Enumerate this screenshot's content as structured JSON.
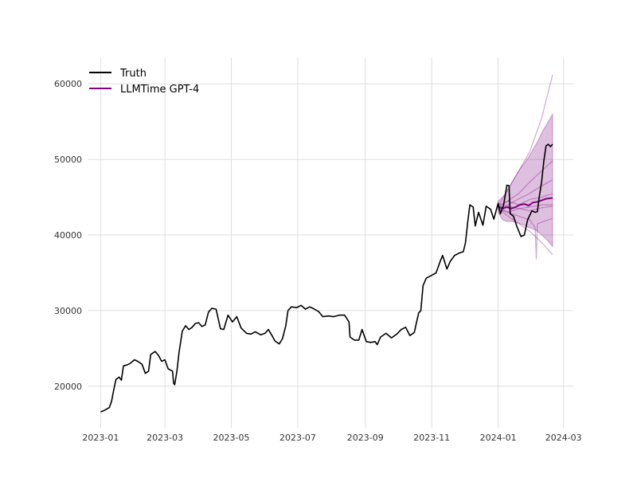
{
  "chart_data": {
    "type": "line",
    "title": "",
    "xlabel": "",
    "ylabel": "",
    "x_range": [
      "2022-12-20",
      "2024-03-10"
    ],
    "ylim": [
      14500,
      63500
    ],
    "grid": true,
    "legend_position": "top-left",
    "x_ticks": [
      "2023-01",
      "2023-03",
      "2023-05",
      "2023-07",
      "2023-09",
      "2023-11",
      "2024-01",
      "2024-03"
    ],
    "y_ticks": [
      20000,
      30000,
      40000,
      50000,
      60000
    ],
    "legend": [
      {
        "label": "Truth",
        "color": "#000000"
      },
      {
        "label": "LLMTime GPT-4",
        "color": "#800080"
      }
    ],
    "series": [
      {
        "name": "Truth",
        "color": "#000000",
        "points": [
          [
            "2023-01-01",
            16600
          ],
          [
            "2023-01-05",
            16850
          ],
          [
            "2023-01-09",
            17200
          ],
          [
            "2023-01-11",
            18000
          ],
          [
            "2023-01-13",
            19500
          ],
          [
            "2023-01-15",
            20900
          ],
          [
            "2023-01-18",
            21200
          ],
          [
            "2023-01-20",
            20800
          ],
          [
            "2023-01-22",
            22700
          ],
          [
            "2023-01-25",
            22800
          ],
          [
            "2023-01-28",
            23000
          ],
          [
            "2023-02-01",
            23500
          ],
          [
            "2023-02-04",
            23300
          ],
          [
            "2023-02-08",
            22900
          ],
          [
            "2023-02-11",
            21700
          ],
          [
            "2023-02-14",
            22000
          ],
          [
            "2023-02-16",
            24200
          ],
          [
            "2023-02-20",
            24600
          ],
          [
            "2023-02-23",
            24100
          ],
          [
            "2023-02-26",
            23300
          ],
          [
            "2023-03-01",
            23500
          ],
          [
            "2023-03-04",
            22300
          ],
          [
            "2023-03-08",
            22000
          ],
          [
            "2023-03-09",
            20400
          ],
          [
            "2023-03-10",
            20200
          ],
          [
            "2023-03-12",
            22000
          ],
          [
            "2023-03-14",
            24500
          ],
          [
            "2023-03-17",
            27300
          ],
          [
            "2023-03-20",
            28000
          ],
          [
            "2023-03-23",
            27500
          ],
          [
            "2023-03-26",
            27800
          ],
          [
            "2023-03-29",
            28300
          ],
          [
            "2023-04-01",
            28400
          ],
          [
            "2023-04-04",
            27900
          ],
          [
            "2023-04-07",
            28100
          ],
          [
            "2023-04-10",
            29800
          ],
          [
            "2023-04-13",
            30300
          ],
          [
            "2023-04-17",
            30200
          ],
          [
            "2023-04-19",
            28900
          ],
          [
            "2023-04-21",
            27600
          ],
          [
            "2023-04-24",
            27500
          ],
          [
            "2023-04-28",
            29400
          ],
          [
            "2023-05-02",
            28500
          ],
          [
            "2023-05-06",
            29200
          ],
          [
            "2023-05-10",
            27700
          ],
          [
            "2023-05-15",
            27000
          ],
          [
            "2023-05-19",
            26900
          ],
          [
            "2023-05-23",
            27200
          ],
          [
            "2023-05-28",
            26800
          ],
          [
            "2023-06-01",
            27000
          ],
          [
            "2023-06-04",
            27500
          ],
          [
            "2023-06-07",
            26800
          ],
          [
            "2023-06-10",
            26000
          ],
          [
            "2023-06-14",
            25600
          ],
          [
            "2023-06-17",
            26300
          ],
          [
            "2023-06-20",
            28000
          ],
          [
            "2023-06-22",
            30000
          ],
          [
            "2023-06-25",
            30500
          ],
          [
            "2023-06-30",
            30400
          ],
          [
            "2023-07-04",
            30700
          ],
          [
            "2023-07-08",
            30200
          ],
          [
            "2023-07-12",
            30500
          ],
          [
            "2023-07-15",
            30300
          ],
          [
            "2023-07-20",
            29900
          ],
          [
            "2023-07-24",
            29200
          ],
          [
            "2023-07-29",
            29300
          ],
          [
            "2023-08-03",
            29200
          ],
          [
            "2023-08-08",
            29400
          ],
          [
            "2023-08-13",
            29400
          ],
          [
            "2023-08-17",
            28500
          ],
          [
            "2023-08-18",
            26500
          ],
          [
            "2023-08-22",
            26100
          ],
          [
            "2023-08-26",
            26100
          ],
          [
            "2023-08-29",
            27500
          ],
          [
            "2023-09-02",
            25900
          ],
          [
            "2023-09-06",
            25800
          ],
          [
            "2023-09-10",
            25900
          ],
          [
            "2023-09-12",
            25500
          ],
          [
            "2023-09-15",
            26500
          ],
          [
            "2023-09-20",
            27000
          ],
          [
            "2023-09-25",
            26400
          ],
          [
            "2023-09-30",
            26900
          ],
          [
            "2023-10-04",
            27500
          ],
          [
            "2023-10-08",
            27800
          ],
          [
            "2023-10-12",
            26700
          ],
          [
            "2023-10-16",
            27100
          ],
          [
            "2023-10-18",
            28400
          ],
          [
            "2023-10-20",
            29700
          ],
          [
            "2023-10-22",
            30000
          ],
          [
            "2023-10-24",
            33300
          ],
          [
            "2023-10-27",
            34300
          ],
          [
            "2023-10-31",
            34600
          ],
          [
            "2023-11-05",
            35000
          ],
          [
            "2023-11-09",
            36600
          ],
          [
            "2023-11-11",
            37300
          ],
          [
            "2023-11-15",
            35500
          ],
          [
            "2023-11-18",
            36500
          ],
          [
            "2023-11-22",
            37300
          ],
          [
            "2023-11-26",
            37600
          ],
          [
            "2023-11-30",
            37800
          ],
          [
            "2023-12-02",
            39000
          ],
          [
            "2023-12-04",
            41600
          ],
          [
            "2023-12-06",
            44000
          ],
          [
            "2023-12-09",
            43700
          ],
          [
            "2023-12-11",
            41200
          ],
          [
            "2023-12-14",
            43000
          ],
          [
            "2023-12-18",
            41300
          ],
          [
            "2023-12-21",
            43800
          ],
          [
            "2023-12-25",
            43400
          ],
          [
            "2023-12-28",
            42100
          ],
          [
            "2024-01-01",
            44200
          ],
          [
            "2024-01-03",
            42800
          ],
          [
            "2024-01-06",
            44000
          ],
          [
            "2024-01-09",
            46600
          ],
          [
            "2024-01-11",
            46500
          ],
          [
            "2024-01-12",
            42800
          ],
          [
            "2024-01-15",
            42500
          ],
          [
            "2024-01-18",
            41200
          ],
          [
            "2024-01-22",
            39800
          ],
          [
            "2024-01-25",
            40000
          ],
          [
            "2024-01-28",
            42000
          ],
          [
            "2024-02-01",
            43200
          ],
          [
            "2024-02-04",
            43000
          ],
          [
            "2024-02-06",
            43100
          ],
          [
            "2024-02-08",
            45300
          ],
          [
            "2024-02-10",
            47100
          ],
          [
            "2024-02-12",
            49900
          ],
          [
            "2024-02-14",
            51800
          ],
          [
            "2024-02-16",
            52000
          ],
          [
            "2024-02-18",
            51700
          ],
          [
            "2024-02-20",
            52000
          ]
        ]
      },
      {
        "name": "LLMTime GPT-4",
        "color": "#800080",
        "role": "median",
        "points": [
          [
            "2024-01-01",
            43800
          ],
          [
            "2024-01-05",
            43500
          ],
          [
            "2024-01-09",
            43700
          ],
          [
            "2024-01-13",
            43500
          ],
          [
            "2024-01-17",
            43700
          ],
          [
            "2024-01-21",
            44000
          ],
          [
            "2024-01-25",
            44100
          ],
          [
            "2024-01-29",
            43900
          ],
          [
            "2024-02-02",
            44300
          ],
          [
            "2024-02-06",
            44400
          ],
          [
            "2024-02-10",
            44600
          ],
          [
            "2024-02-14",
            44800
          ],
          [
            "2024-02-20",
            44900
          ]
        ]
      }
    ],
    "prediction_interval": {
      "color": "#800080",
      "x": [
        "2024-01-01",
        "2024-01-05",
        "2024-01-09",
        "2024-01-13",
        "2024-01-17",
        "2024-01-21",
        "2024-01-25",
        "2024-01-29",
        "2024-02-02",
        "2024-02-06",
        "2024-02-10",
        "2024-02-14",
        "2024-02-20"
      ],
      "lower": [
        43000,
        42000,
        41800,
        41800,
        41700,
        41500,
        41300,
        41000,
        40800,
        40500,
        40000,
        39500,
        38500
      ],
      "upper": [
        44500,
        45000,
        45800,
        46800,
        47800,
        48700,
        49500,
        50300,
        51300,
        52300,
        53500,
        54500,
        56000
      ]
    },
    "samples": [
      {
        "x": [
          "2024-01-01",
          "2024-01-10",
          "2024-01-20",
          "2024-01-30",
          "2024-02-10",
          "2024-02-20"
        ],
        "values": [
          43800,
          46000,
          48500,
          51000,
          55500,
          61200
        ]
      },
      {
        "x": [
          "2024-01-01",
          "2024-01-10",
          "2024-01-20",
          "2024-01-30",
          "2024-02-10",
          "2024-02-20"
        ],
        "values": [
          43500,
          42500,
          41500,
          40500,
          39000,
          37400
        ]
      },
      {
        "x": [
          "2024-01-01",
          "2024-01-10",
          "2024-01-20",
          "2024-01-30",
          "2024-02-10",
          "2024-02-20"
        ],
        "values": [
          43700,
          44500,
          45500,
          47000,
          48500,
          49800
        ]
      },
      {
        "x": [
          "2024-01-01",
          "2024-01-10",
          "2024-01-20",
          "2024-01-30",
          "2024-02-10",
          "2024-02-20"
        ],
        "values": [
          43600,
          44000,
          44800,
          45500,
          46500,
          47300
        ]
      },
      {
        "x": [
          "2024-01-01",
          "2024-01-10",
          "2024-01-20",
          "2024-01-30",
          "2024-02-04",
          "2024-02-05",
          "2024-02-06",
          "2024-02-20"
        ],
        "values": [
          43400,
          43000,
          42500,
          42000,
          41000,
          36800,
          41500,
          42200
        ]
      },
      {
        "x": [
          "2024-01-01",
          "2024-01-10",
          "2024-01-20",
          "2024-01-30",
          "2024-02-10",
          "2024-02-20"
        ],
        "values": [
          43900,
          44500,
          44000,
          44700,
          45000,
          45500
        ]
      },
      {
        "x": [
          "2024-01-01",
          "2024-01-10",
          "2024-01-20",
          "2024-01-30",
          "2024-02-10",
          "2024-02-20"
        ],
        "values": [
          43500,
          43800,
          43500,
          43700,
          44000,
          44000
        ]
      },
      {
        "x": [
          "2024-01-01",
          "2024-01-10",
          "2024-01-20",
          "2024-01-30",
          "2024-02-10",
          "2024-02-20"
        ],
        "values": [
          43700,
          43000,
          43500,
          43200,
          43600,
          43800
        ]
      }
    ]
  }
}
